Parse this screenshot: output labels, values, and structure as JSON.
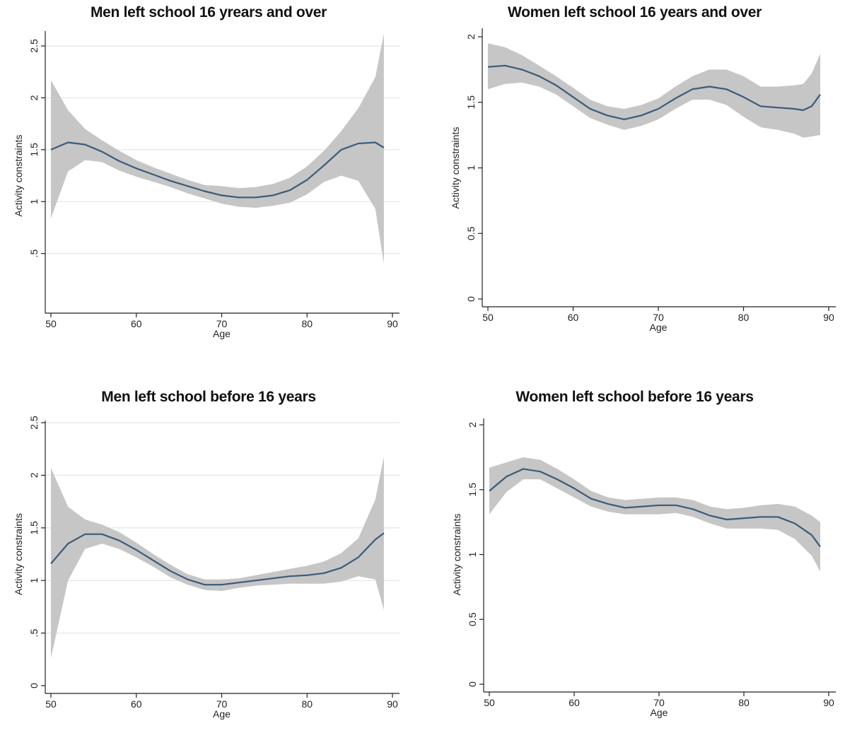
{
  "chart_data": [
    {
      "type": "line",
      "title": "Men left school 16 yrears and over",
      "xlabel": "Age",
      "ylabel": "Activity constraints",
      "xlim": [
        50,
        90
      ],
      "ylim": [
        0,
        2.5
      ],
      "xticks": [
        50,
        60,
        70,
        80,
        90
      ],
      "yticks": [
        0.5,
        1,
        1.5,
        2,
        2.5
      ],
      "ytick_labels": [
        ".5",
        "1",
        "1.5",
        "2",
        "2.5"
      ],
      "grid": true,
      "colors": {
        "line": "#3c5a78",
        "band": "#c6c6c6",
        "grid": "#e4ecec"
      },
      "x": [
        50,
        52,
        54,
        56,
        58,
        60,
        62,
        64,
        66,
        68,
        70,
        72,
        74,
        76,
        78,
        80,
        82,
        84,
        86,
        88,
        89
      ],
      "series": [
        {
          "values": [
            1.5,
            1.57,
            1.55,
            1.48,
            1.39,
            1.32,
            1.26,
            1.2,
            1.15,
            1.1,
            1.06,
            1.04,
            1.04,
            1.06,
            1.11,
            1.21,
            1.35,
            1.5,
            1.56,
            1.57,
            1.52
          ]
        },
        {
          "role": "ci_upper",
          "values": [
            2.17,
            1.88,
            1.7,
            1.59,
            1.49,
            1.4,
            1.33,
            1.27,
            1.21,
            1.16,
            1.15,
            1.13,
            1.14,
            1.17,
            1.23,
            1.34,
            1.49,
            1.68,
            1.9,
            2.2,
            2.62
          ]
        },
        {
          "role": "ci_lower",
          "values": [
            0.84,
            1.29,
            1.4,
            1.38,
            1.3,
            1.24,
            1.19,
            1.14,
            1.08,
            1.03,
            0.98,
            0.95,
            0.94,
            0.96,
            0.99,
            1.07,
            1.19,
            1.25,
            1.2,
            0.93,
            0.4
          ]
        }
      ]
    },
    {
      "type": "line",
      "title": "Women left school 16 years and over",
      "xlabel": "Age",
      "ylabel": "Activity constraints",
      "xlim": [
        50,
        90
      ],
      "ylim": [
        0,
        2
      ],
      "xticks": [
        50,
        60,
        70,
        80,
        90
      ],
      "yticks": [
        0,
        0.5,
        1,
        1.5,
        2
      ],
      "ytick_labels": [
        "0",
        "0.5",
        "1",
        "1.5",
        "2"
      ],
      "grid": false,
      "colors": {
        "line": "#3c5a78",
        "band": "#c6c6c6"
      },
      "x": [
        50,
        52,
        54,
        56,
        58,
        60,
        62,
        64,
        66,
        68,
        70,
        72,
        74,
        76,
        78,
        80,
        82,
        84,
        86,
        87,
        88,
        89
      ],
      "series": [
        {
          "values": [
            1.77,
            1.78,
            1.75,
            1.7,
            1.63,
            1.54,
            1.45,
            1.4,
            1.37,
            1.4,
            1.45,
            1.53,
            1.6,
            1.62,
            1.6,
            1.54,
            1.47,
            1.46,
            1.45,
            1.44,
            1.47,
            1.56
          ]
        },
        {
          "role": "ci_upper",
          "values": [
            1.95,
            1.92,
            1.86,
            1.78,
            1.7,
            1.61,
            1.52,
            1.47,
            1.45,
            1.48,
            1.53,
            1.62,
            1.7,
            1.75,
            1.75,
            1.7,
            1.62,
            1.62,
            1.63,
            1.64,
            1.72,
            1.87
          ]
        },
        {
          "role": "ci_lower",
          "values": [
            1.6,
            1.64,
            1.65,
            1.62,
            1.56,
            1.47,
            1.38,
            1.33,
            1.29,
            1.32,
            1.37,
            1.45,
            1.52,
            1.52,
            1.48,
            1.39,
            1.31,
            1.29,
            1.26,
            1.23,
            1.24,
            1.25
          ]
        }
      ]
    },
    {
      "type": "line",
      "title": "Men left school before 16 years",
      "xlabel": "Age",
      "ylabel": "Activity constraints",
      "xlim": [
        50,
        90
      ],
      "ylim": [
        0,
        2.5
      ],
      "xticks": [
        50,
        60,
        70,
        80,
        90
      ],
      "yticks": [
        0,
        0.5,
        1,
        1.5,
        2,
        2.5
      ],
      "ytick_labels": [
        "0",
        ".5",
        "1",
        "1.5",
        "2",
        "2.5"
      ],
      "grid": true,
      "colors": {
        "line": "#3c5a78",
        "band": "#c6c6c6",
        "grid": "#e4ecec"
      },
      "x": [
        50,
        52,
        54,
        56,
        58,
        60,
        62,
        64,
        66,
        68,
        70,
        72,
        74,
        76,
        78,
        80,
        82,
        84,
        86,
        88,
        89
      ],
      "series": [
        {
          "values": [
            1.16,
            1.35,
            1.44,
            1.44,
            1.38,
            1.29,
            1.19,
            1.09,
            1.01,
            0.96,
            0.96,
            0.98,
            1.0,
            1.02,
            1.04,
            1.05,
            1.07,
            1.12,
            1.22,
            1.39,
            1.45
          ]
        },
        {
          "role": "ci_upper",
          "values": [
            2.07,
            1.7,
            1.58,
            1.53,
            1.46,
            1.36,
            1.25,
            1.15,
            1.06,
            1.01,
            1.01,
            1.02,
            1.05,
            1.08,
            1.11,
            1.14,
            1.18,
            1.26,
            1.4,
            1.77,
            2.18
          ]
        },
        {
          "role": "ci_lower",
          "values": [
            0.26,
            1.0,
            1.3,
            1.35,
            1.3,
            1.22,
            1.13,
            1.03,
            0.96,
            0.91,
            0.9,
            0.93,
            0.95,
            0.96,
            0.97,
            0.97,
            0.97,
            0.99,
            1.04,
            1.01,
            0.72
          ]
        }
      ]
    },
    {
      "type": "line",
      "title": "Women left school before 16 years",
      "xlabel": "Age",
      "ylabel": "Activity constraints",
      "xlim": [
        50,
        90
      ],
      "ylim": [
        0,
        2
      ],
      "xticks": [
        50,
        60,
        70,
        80,
        90
      ],
      "yticks": [
        0,
        0.5,
        1,
        1.5,
        2
      ],
      "ytick_labels": [
        "0",
        "0.5",
        "1",
        "1.5",
        "2"
      ],
      "grid": false,
      "colors": {
        "line": "#3c5a78",
        "band": "#c6c6c6"
      },
      "x": [
        50,
        52,
        54,
        56,
        58,
        60,
        62,
        64,
        66,
        68,
        70,
        72,
        74,
        76,
        78,
        80,
        82,
        84,
        86,
        88,
        89
      ],
      "series": [
        {
          "values": [
            1.49,
            1.6,
            1.66,
            1.64,
            1.58,
            1.51,
            1.43,
            1.39,
            1.36,
            1.37,
            1.38,
            1.38,
            1.35,
            1.3,
            1.27,
            1.28,
            1.29,
            1.29,
            1.24,
            1.15,
            1.06
          ]
        },
        {
          "role": "ci_upper",
          "values": [
            1.67,
            1.71,
            1.75,
            1.73,
            1.66,
            1.58,
            1.49,
            1.44,
            1.42,
            1.43,
            1.44,
            1.44,
            1.42,
            1.37,
            1.35,
            1.36,
            1.38,
            1.39,
            1.37,
            1.3,
            1.25
          ]
        },
        {
          "role": "ci_lower",
          "values": [
            1.31,
            1.48,
            1.58,
            1.58,
            1.51,
            1.44,
            1.37,
            1.33,
            1.31,
            1.31,
            1.31,
            1.32,
            1.29,
            1.24,
            1.2,
            1.2,
            1.2,
            1.19,
            1.12,
            0.99,
            0.87
          ]
        }
      ]
    }
  ]
}
